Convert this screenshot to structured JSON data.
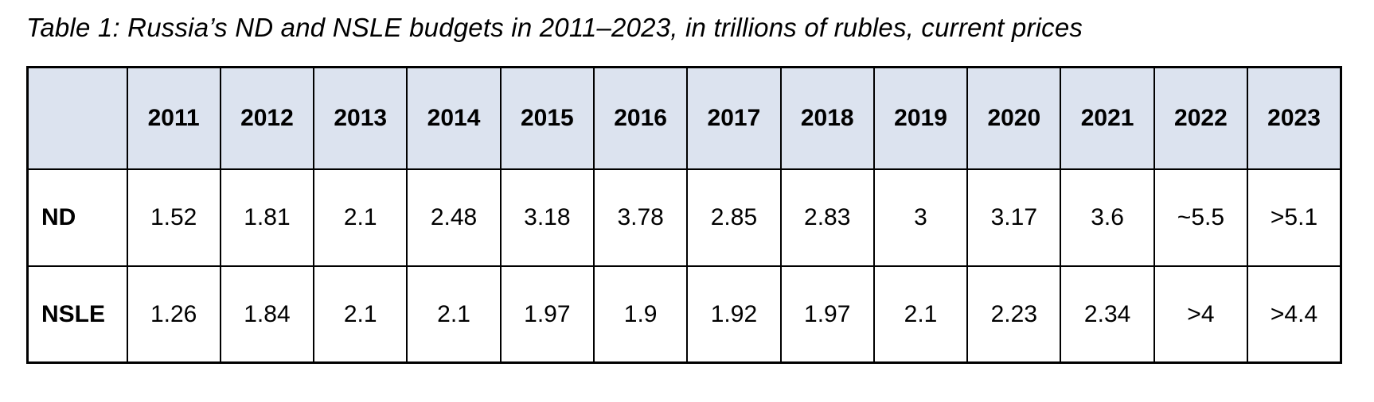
{
  "title": "Table 1: Russia’s ND and NSLE budgets in 2011–2023, in trillions of rubles, current prices",
  "colors": {
    "header_bg": "#dce3ef",
    "border": "#000000",
    "text": "#000000",
    "page_bg": "#ffffff"
  },
  "table": {
    "corner_label": "",
    "years": [
      "2011",
      "2012",
      "2013",
      "2014",
      "2015",
      "2016",
      "2017",
      "2018",
      "2019",
      "2020",
      "2021",
      "2022",
      "2023"
    ],
    "rows": [
      {
        "label": "ND",
        "values": [
          "1.52",
          "1.81",
          "2.1",
          "2.48",
          "3.18",
          "3.78",
          "2.85",
          "2.83",
          "3",
          "3.17",
          "3.6",
          "~5.5",
          ">5.1"
        ]
      },
      {
        "label": "NSLE",
        "values": [
          "1.26",
          "1.84",
          "2.1",
          "2.1",
          "1.97",
          "1.9",
          "1.92",
          "1.97",
          "2.1",
          "2.23",
          "2.34",
          ">4",
          ">4.4"
        ]
      }
    ]
  },
  "chart_data": {
    "type": "table",
    "title": "Table 1: Russia’s ND and NSLE budgets in 2011–2023, in trillions of rubles, current prices",
    "units": "trillions of rubles, current prices",
    "categories": [
      "2011",
      "2012",
      "2013",
      "2014",
      "2015",
      "2016",
      "2017",
      "2018",
      "2019",
      "2020",
      "2021",
      "2022",
      "2023"
    ],
    "series": [
      {
        "name": "ND",
        "values": [
          1.52,
          1.81,
          2.1,
          2.48,
          3.18,
          3.78,
          2.85,
          2.83,
          3,
          3.17,
          3.6,
          5.5,
          5.1
        ],
        "values_display": [
          "1.52",
          "1.81",
          "2.1",
          "2.48",
          "3.18",
          "3.78",
          "2.85",
          "2.83",
          "3",
          "3.17",
          "3.6",
          "~5.5",
          ">5.1"
        ]
      },
      {
        "name": "NSLE",
        "values": [
          1.26,
          1.84,
          2.1,
          2.1,
          1.97,
          1.9,
          1.92,
          1.97,
          2.1,
          2.23,
          2.34,
          4,
          4.4
        ],
        "values_display": [
          "1.26",
          "1.84",
          "2.1",
          "2.1",
          "1.97",
          "1.9",
          "1.92",
          "1.97",
          "2.1",
          "2.23",
          "2.34",
          ">4",
          ">4.4"
        ]
      }
    ]
  }
}
